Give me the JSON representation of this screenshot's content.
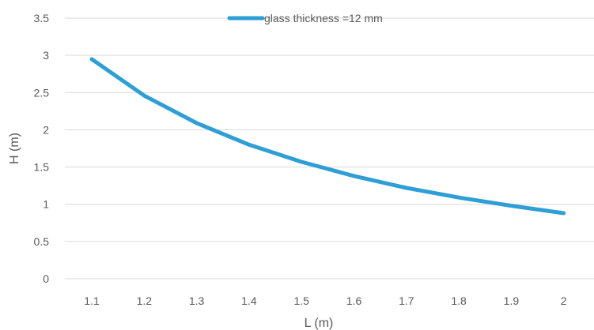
{
  "chart_data": {
    "type": "line",
    "title": "",
    "xlabel": "L (m)",
    "ylabel": "H (m)",
    "x": [
      1.1,
      1.2,
      1.3,
      1.4,
      1.5,
      1.6,
      1.7,
      1.8,
      1.9,
      2
    ],
    "x_tick_labels": [
      "1.1",
      "1.2",
      "1.3",
      "1.4",
      "1.5",
      "1.6",
      "1.7",
      "1.8",
      "1.9",
      "2"
    ],
    "y_tick_labels": [
      "0",
      "0.5",
      "1",
      "1.5",
      "2",
      "2.5",
      "3",
      "3.5"
    ],
    "ylim": [
      0,
      3.5
    ],
    "grid": true,
    "legend_position": "top",
    "series": [
      {
        "name": "glass thickness =12 mm",
        "color": "#2e9fd6",
        "values": [
          2.95,
          2.46,
          2.09,
          1.8,
          1.57,
          1.38,
          1.22,
          1.09,
          0.98,
          0.88
        ]
      }
    ]
  }
}
